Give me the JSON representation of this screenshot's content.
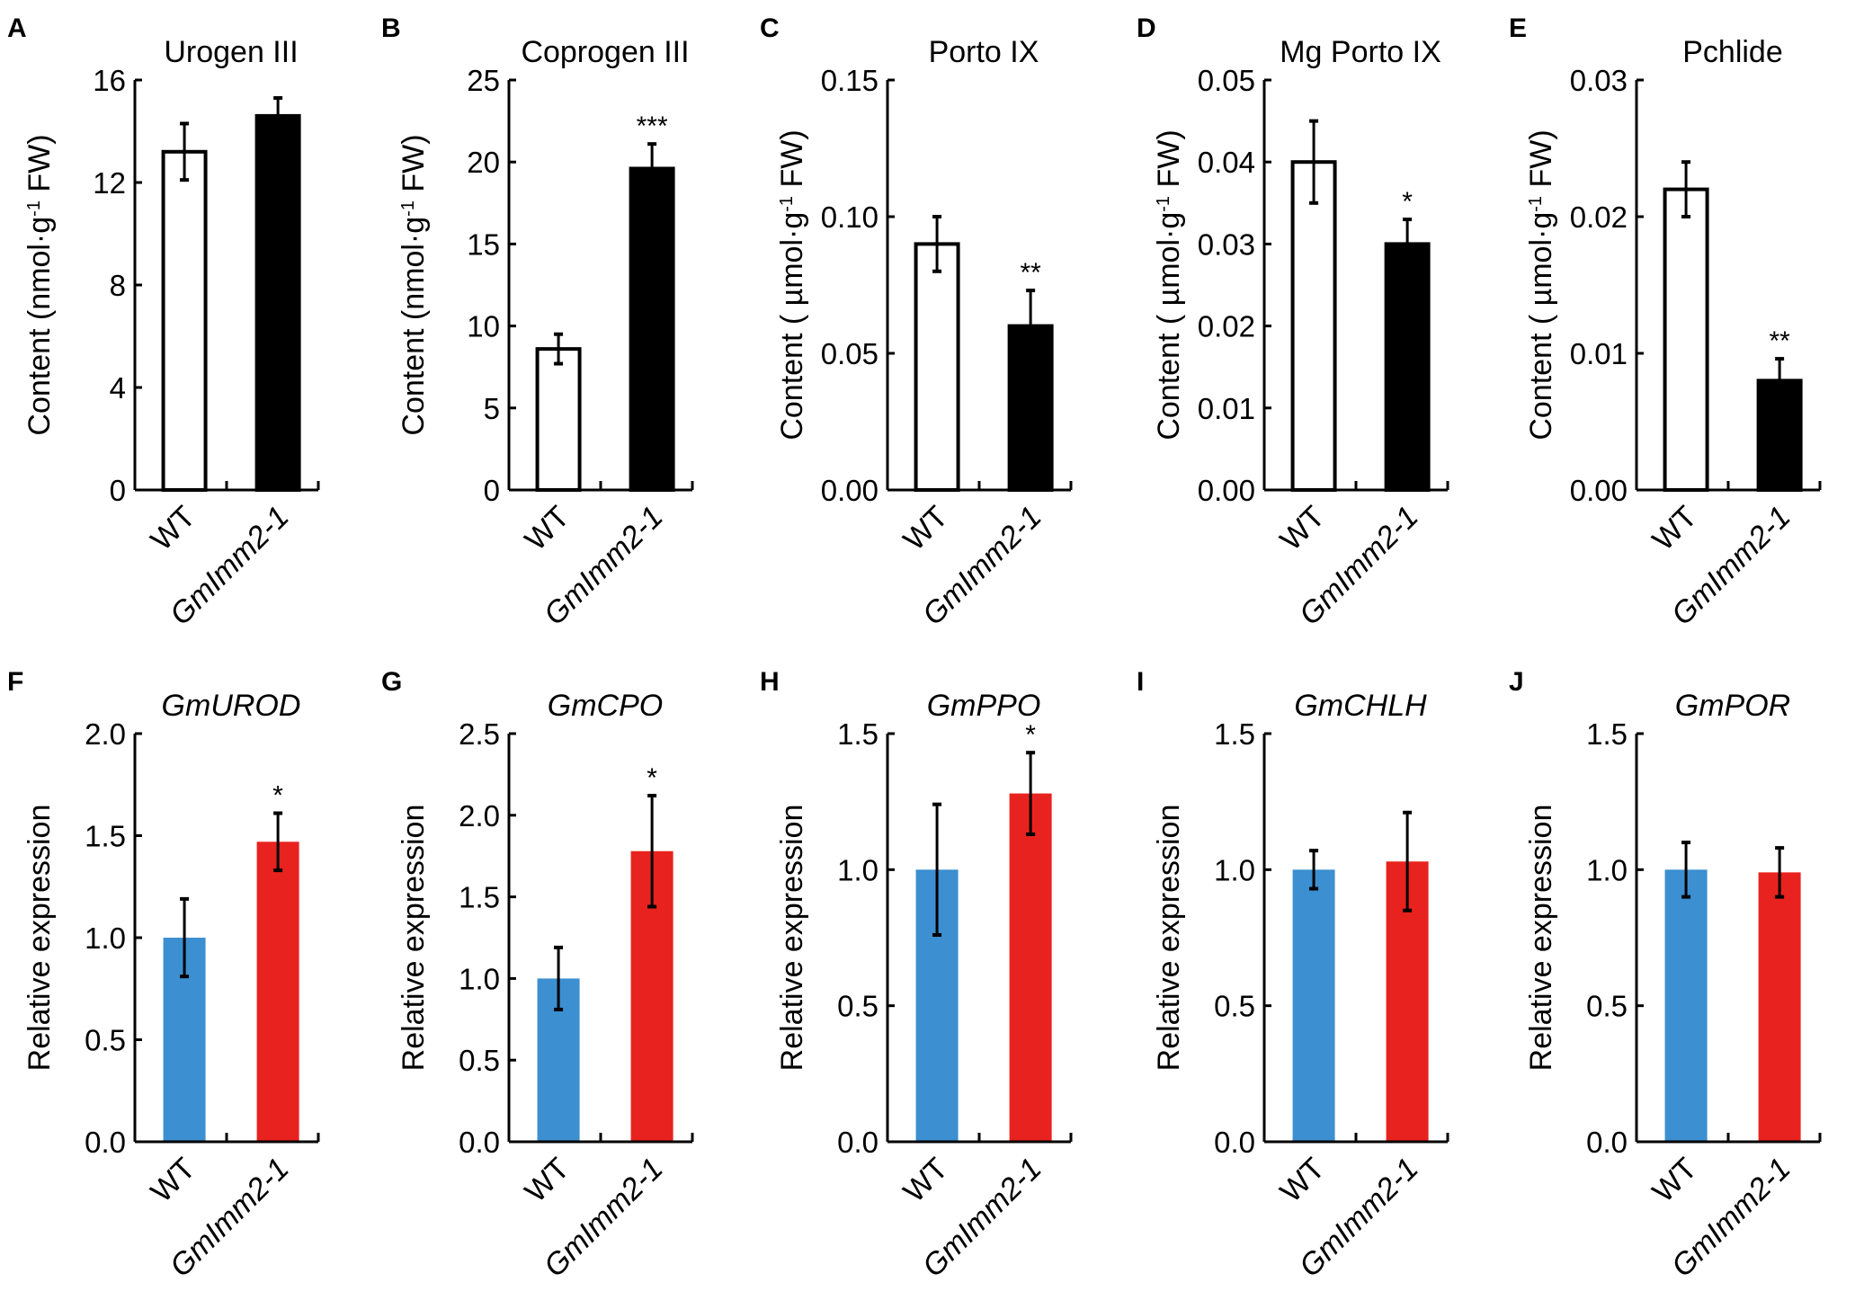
{
  "colors": {
    "wt_top": "#ffffff",
    "mut_top": "#000000",
    "wt_bottom": "#3c8fd0",
    "mut_bottom": "#e8221e"
  },
  "chart_data": [
    {
      "letter": "A",
      "type": "bar",
      "title": "Urogen III",
      "title_italic": false,
      "ylabel": [
        "Content (nmol·g",
        "-1",
        " FW)"
      ],
      "categories": [
        "WT",
        "GmImm2-1"
      ],
      "values": [
        13.2,
        14.6
      ],
      "errors": [
        1.1,
        0.7
      ],
      "significance": [
        "",
        ""
      ],
      "ylim": [
        0,
        16
      ],
      "yticks": [
        "0",
        "4",
        "8",
        "12",
        "16"
      ],
      "row": 0
    },
    {
      "letter": "B",
      "type": "bar",
      "title": "Coprogen III",
      "title_italic": false,
      "ylabel": [
        "Content (nmol·g",
        "-1",
        " FW)"
      ],
      "categories": [
        "WT",
        "GmImm2-1"
      ],
      "values": [
        8.6,
        19.6
      ],
      "errors": [
        0.9,
        1.5
      ],
      "significance": [
        "",
        "***"
      ],
      "ylim": [
        0,
        25
      ],
      "yticks": [
        "0",
        "5",
        "10",
        "15",
        "20",
        "25"
      ],
      "row": 0
    },
    {
      "letter": "C",
      "type": "bar",
      "title": "Porto IX",
      "title_italic": false,
      "ylabel": [
        "Content ( µmol·g",
        "-1",
        " FW)"
      ],
      "categories": [
        "WT",
        "GmImm2-1"
      ],
      "values": [
        0.09,
        0.06
      ],
      "errors": [
        0.01,
        0.013
      ],
      "significance": [
        "",
        "**"
      ],
      "ylim": [
        0,
        0.15
      ],
      "yticks": [
        "0.00",
        "0.05",
        "0.10",
        "0.15"
      ],
      "row": 0
    },
    {
      "letter": "D",
      "type": "bar",
      "title": "Mg Porto IX",
      "title_italic": false,
      "ylabel": [
        "Content ( µmol·g",
        "-1",
        " FW)"
      ],
      "categories": [
        "WT",
        "GmImm2-1"
      ],
      "values": [
        0.04,
        0.03
      ],
      "errors": [
        0.005,
        0.003
      ],
      "significance": [
        "",
        "*"
      ],
      "ylim": [
        0,
        0.05
      ],
      "yticks": [
        "0.00",
        "0.01",
        "0.02",
        "0.03",
        "0.04",
        "0.05"
      ],
      "row": 0
    },
    {
      "letter": "E",
      "type": "bar",
      "title": "Pchlide",
      "title_italic": false,
      "ylabel": [
        "Content ( µmol·g",
        "-1",
        " FW)"
      ],
      "categories": [
        "WT",
        "GmImm2-1"
      ],
      "values": [
        0.022,
        0.008
      ],
      "errors": [
        0.002,
        0.0016
      ],
      "significance": [
        "",
        "**"
      ],
      "ylim": [
        0,
        0.03
      ],
      "yticks": [
        "0.00",
        "0.01",
        "0.02",
        "0.03"
      ],
      "row": 0
    },
    {
      "letter": "F",
      "type": "bar",
      "title": "GmUROD",
      "title_italic": true,
      "ylabel": [
        "Relative expression",
        "",
        ""
      ],
      "categories": [
        "WT",
        "GmImm2-1"
      ],
      "values": [
        1.0,
        1.47
      ],
      "errors": [
        0.19,
        0.14
      ],
      "significance": [
        "",
        "*"
      ],
      "ylim": [
        0,
        2.0
      ],
      "yticks": [
        "0.0",
        "0.5",
        "1.0",
        "1.5",
        "2.0"
      ],
      "row": 1
    },
    {
      "letter": "G",
      "type": "bar",
      "title": "GmCPO",
      "title_italic": true,
      "ylabel": [
        "Relative expression",
        "",
        ""
      ],
      "categories": [
        "WT",
        "GmImm2-1"
      ],
      "values": [
        1.0,
        1.78
      ],
      "errors": [
        0.19,
        0.34
      ],
      "significance": [
        "",
        "*"
      ],
      "ylim": [
        0,
        2.5
      ],
      "yticks": [
        "0.0",
        "0.5",
        "1.0",
        "1.5",
        "2.0",
        "2.5"
      ],
      "row": 1
    },
    {
      "letter": "H",
      "type": "bar",
      "title": "GmPPO",
      "title_italic": true,
      "ylabel": [
        "Relative expression",
        "",
        ""
      ],
      "categories": [
        "WT",
        "GmImm2-1"
      ],
      "values": [
        1.0,
        1.28
      ],
      "errors": [
        0.24,
        0.15
      ],
      "significance": [
        "",
        "*"
      ],
      "ylim": [
        0,
        1.5
      ],
      "yticks": [
        "0.0",
        "0.5",
        "1.0",
        "1.5"
      ],
      "row": 1
    },
    {
      "letter": "I",
      "type": "bar",
      "title": "GmCHLH",
      "title_italic": true,
      "ylabel": [
        "Relative expression",
        "",
        ""
      ],
      "categories": [
        "WT",
        "GmImm2-1"
      ],
      "values": [
        1.0,
        1.03
      ],
      "errors": [
        0.07,
        0.18
      ],
      "significance": [
        "",
        ""
      ],
      "ylim": [
        0,
        1.5
      ],
      "yticks": [
        "0.0",
        "0.5",
        "1.0",
        "1.5"
      ],
      "row": 1
    },
    {
      "letter": "J",
      "type": "bar",
      "title": "GmPOR",
      "title_italic": true,
      "ylabel": [
        "Relative expression",
        "",
        ""
      ],
      "categories": [
        "WT",
        "GmImm2-1"
      ],
      "values": [
        1.0,
        0.99
      ],
      "errors": [
        0.1,
        0.09
      ],
      "significance": [
        "",
        ""
      ],
      "ylim": [
        0,
        1.5
      ],
      "yticks": [
        "0.0",
        "0.5",
        "1.0",
        "1.5"
      ],
      "row": 1
    }
  ]
}
